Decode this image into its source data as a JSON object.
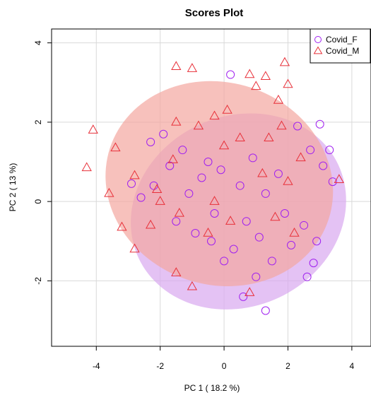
{
  "chart_data": {
    "type": "scatter",
    "title": "Scores Plot",
    "xlabel": "PC 1 ( 18.2 %)",
    "ylabel": "PC 2 ( 13 %)",
    "xlim": [
      -5.4,
      4.6
    ],
    "ylim": [
      -3.65,
      4.35
    ],
    "x_ticks": [
      -4,
      -2,
      0,
      2,
      4
    ],
    "y_ticks": [
      -2,
      0,
      2,
      4
    ],
    "grid": true,
    "legend_position": "top-right",
    "series": [
      {
        "name": "Covid_F",
        "marker": "circle",
        "color": "#a020f0",
        "ellipse_color": "#d9a8ef",
        "ellipse": {
          "cx": 0.45,
          "cy": -0.25,
          "rx": 3.45,
          "ry": 2.4,
          "angle_deg": -25
        },
        "points": [
          [
            -2.9,
            0.45
          ],
          [
            -2.6,
            0.1
          ],
          [
            -2.3,
            1.5
          ],
          [
            -2.2,
            0.4
          ],
          [
            -1.9,
            1.7
          ],
          [
            -1.7,
            0.9
          ],
          [
            -1.5,
            -0.5
          ],
          [
            -1.3,
            1.3
          ],
          [
            -1.1,
            0.2
          ],
          [
            -0.9,
            -0.8
          ],
          [
            -0.7,
            0.6
          ],
          [
            -0.5,
            1.0
          ],
          [
            -0.3,
            -0.3
          ],
          [
            -0.1,
            0.8
          ],
          [
            0.2,
            3.2
          ],
          [
            0.3,
            -1.2
          ],
          [
            0.5,
            0.4
          ],
          [
            0.7,
            -0.5
          ],
          [
            0.9,
            1.1
          ],
          [
            1.1,
            -0.9
          ],
          [
            1.3,
            0.2
          ],
          [
            1.5,
            -1.5
          ],
          [
            1.7,
            0.7
          ],
          [
            1.9,
            -0.3
          ],
          [
            2.1,
            -1.1
          ],
          [
            2.3,
            1.9
          ],
          [
            2.5,
            -0.6
          ],
          [
            2.7,
            1.3
          ],
          [
            2.9,
            -1.0
          ],
          [
            3.1,
            0.9
          ],
          [
            3.3,
            1.3
          ],
          [
            3.4,
            0.5
          ],
          [
            0.6,
            -2.4
          ],
          [
            1.3,
            -2.75
          ],
          [
            0.0,
            -1.5
          ],
          [
            -0.4,
            -1.0
          ],
          [
            1.0,
            -1.9
          ],
          [
            2.6,
            -1.9
          ],
          [
            2.8,
            -1.55
          ],
          [
            3.0,
            1.95
          ]
        ]
      },
      {
        "name": "Covid_M",
        "marker": "triangle",
        "color": "#e8313a",
        "ellipse_color": "#f4a6a0",
        "ellipse": {
          "cx": -0.15,
          "cy": 0.45,
          "rx": 3.6,
          "ry": 2.55,
          "angle_deg": 18
        },
        "points": [
          [
            -4.3,
            0.85
          ],
          [
            -4.1,
            1.8
          ],
          [
            -3.6,
            0.2
          ],
          [
            -3.4,
            1.35
          ],
          [
            -3.2,
            -0.65
          ],
          [
            -2.8,
            0.65
          ],
          [
            -2.8,
            -1.2
          ],
          [
            -2.3,
            -0.6
          ],
          [
            -2.1,
            0.3
          ],
          [
            -1.6,
            1.05
          ],
          [
            -1.5,
            2.0
          ],
          [
            -1.5,
            -1.8
          ],
          [
            -1.4,
            -0.3
          ],
          [
            -1.5,
            3.4
          ],
          [
            -1.0,
            3.35
          ],
          [
            -1.0,
            -2.15
          ],
          [
            -0.8,
            1.9
          ],
          [
            -0.5,
            -0.8
          ],
          [
            -0.3,
            0.0
          ],
          [
            0.0,
            1.4
          ],
          [
            0.1,
            2.3
          ],
          [
            0.2,
            -0.5
          ],
          [
            0.5,
            1.6
          ],
          [
            0.8,
            3.2
          ],
          [
            0.8,
            -2.3
          ],
          [
            1.0,
            2.9
          ],
          [
            1.2,
            0.7
          ],
          [
            1.3,
            3.15
          ],
          [
            1.4,
            1.6
          ],
          [
            1.6,
            -0.4
          ],
          [
            1.8,
            1.9
          ],
          [
            1.9,
            3.5
          ],
          [
            2.0,
            2.95
          ],
          [
            2.0,
            0.5
          ],
          [
            2.2,
            -0.8
          ],
          [
            2.4,
            1.1
          ],
          [
            -0.3,
            2.15
          ],
          [
            1.7,
            2.55
          ],
          [
            3.6,
            0.55
          ],
          [
            -2.0,
            0.0
          ]
        ]
      }
    ]
  }
}
